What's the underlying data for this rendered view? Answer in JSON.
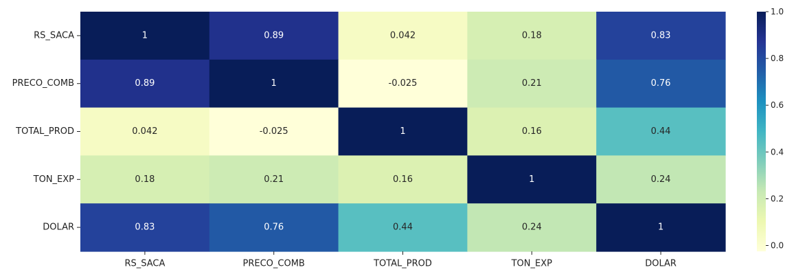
{
  "chart_data": {
    "type": "heatmap",
    "rows": [
      "RS_SACA",
      "PRECO_COMB",
      "TOTAL_PROD",
      "TON_EXP",
      "DOLAR"
    ],
    "columns": [
      "RS_SACA",
      "PRECO_COMB",
      "TOTAL_PROD",
      "TON_EXP",
      "DOLAR"
    ],
    "values": [
      [
        1,
        0.89,
        0.042,
        0.18,
        0.83
      ],
      [
        0.89,
        1,
        -0.025,
        0.21,
        0.76
      ],
      [
        0.042,
        -0.025,
        1,
        0.16,
        0.44
      ],
      [
        0.18,
        0.21,
        0.16,
        1,
        0.24
      ],
      [
        0.83,
        0.76,
        0.44,
        0.24,
        1
      ]
    ],
    "cell_labels": [
      [
        "1",
        "0.89",
        "0.042",
        "0.18",
        "0.83"
      ],
      [
        "0.89",
        "1",
        "-0.025",
        "0.21",
        "0.76"
      ],
      [
        "0.042",
        "-0.025",
        "1",
        "0.16",
        "0.44"
      ],
      [
        "0.18",
        "0.21",
        "0.16",
        "1",
        "0.24"
      ],
      [
        "0.83",
        "0.76",
        "0.44",
        "0.24",
        "1"
      ]
    ],
    "colormap": "YlGnBu",
    "color_range": [
      -0.025,
      1
    ],
    "colorbar": {
      "ticks": [
        0.0,
        0.2,
        0.4,
        0.6,
        0.8,
        1.0
      ],
      "tick_labels": [
        "0.0",
        "0.2",
        "0.4",
        "0.6",
        "0.8",
        "1.0"
      ],
      "position": "right"
    },
    "annotated": true,
    "grid": false
  }
}
